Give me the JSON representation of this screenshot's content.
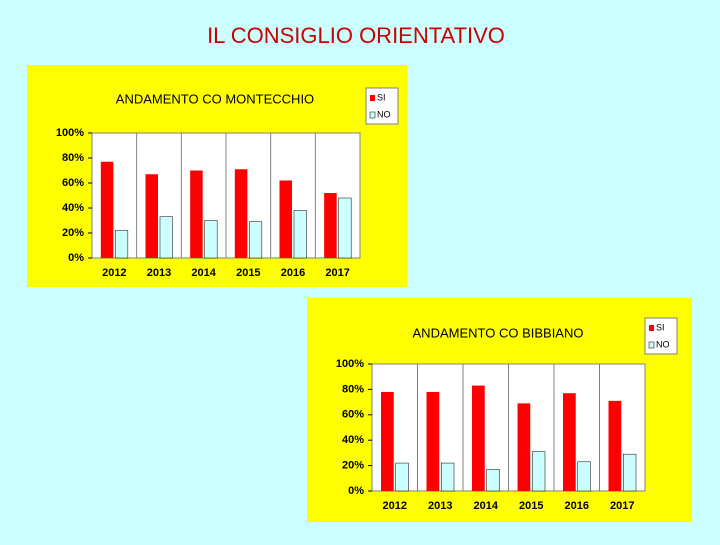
{
  "title": "IL CONSIGLIO ORIENTATIVO",
  "chart_data": [
    {
      "type": "bar",
      "title": "ANDAMENTO CO MONTECCHIO",
      "categories": [
        "2012",
        "2013",
        "2014",
        "2015",
        "2016",
        "2017"
      ],
      "series": [
        {
          "name": "SI",
          "color": "#ff0000",
          "values": [
            77,
            67,
            70,
            71,
            62,
            52
          ]
        },
        {
          "name": "NO",
          "color": "#ccffff",
          "values": [
            22,
            33,
            30,
            29,
            38,
            48
          ]
        }
      ],
      "ylim": [
        0,
        100
      ],
      "yticks": [
        {
          "value": 0,
          "label": "0%"
        },
        {
          "value": 20,
          "label": "20%"
        },
        {
          "value": 40,
          "label": "40%"
        },
        {
          "value": 60,
          "label": "60%"
        },
        {
          "value": 80,
          "label": "80%"
        },
        {
          "value": 100,
          "label": "100%"
        }
      ]
    },
    {
      "type": "bar",
      "title": "ANDAMENTO CO BIBBIANO",
      "categories": [
        "2012",
        "2013",
        "2014",
        "2015",
        "2016",
        "2017"
      ],
      "series": [
        {
          "name": "SI",
          "color": "#ff0000",
          "values": [
            78,
            78,
            83,
            69,
            77,
            71
          ]
        },
        {
          "name": "NO",
          "color": "#ccffff",
          "values": [
            22,
            22,
            17,
            31,
            23,
            29
          ]
        }
      ],
      "ylim": [
        0,
        100
      ],
      "yticks": [
        {
          "value": 0,
          "label": "0%"
        },
        {
          "value": 20,
          "label": "20%"
        },
        {
          "value": 40,
          "label": "40%"
        },
        {
          "value": 60,
          "label": "60%"
        },
        {
          "value": 80,
          "label": "80%"
        },
        {
          "value": 100,
          "label": "100%"
        }
      ]
    }
  ]
}
